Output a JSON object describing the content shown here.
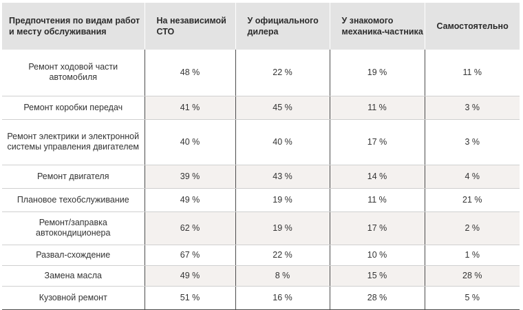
{
  "headers": [
    "Предпочтения по видам работ и месту обслуживания",
    "На независимой СТО",
    "У официального дилера",
    "У знакомого механика-частника",
    "Самостоятельно"
  ],
  "rows": [
    [
      "Ремонт ходовой части автомобиля",
      "48 %",
      "22 %",
      "19 %",
      "11 %"
    ],
    [
      "Ремонт коробки передач",
      "41 %",
      "45 %",
      "11 %",
      "3 %"
    ],
    [
      "Ремонт электрики и электронной системы управления двигателем",
      "40 %",
      "40 %",
      "17 %",
      "3 %"
    ],
    [
      "Ремонт двигателя",
      "39 %",
      "43 %",
      "14 %",
      "4 %"
    ],
    [
      "Плановое техобслуживание",
      "49 %",
      "19 %",
      "11 %",
      "21 %"
    ],
    [
      "Ремонт/заправка автокондиционера",
      "62 %",
      "19 %",
      "17 %",
      "2 %"
    ],
    [
      "Развал-схождение",
      "67 %",
      "22 %",
      "10 %",
      "1 %"
    ],
    [
      "Замена масла",
      "49 %",
      "8 %",
      "15 %",
      "28 %"
    ],
    [
      "Кузовной ремонт",
      "51 %",
      "16 %",
      "28 %",
      "5 %"
    ]
  ]
}
